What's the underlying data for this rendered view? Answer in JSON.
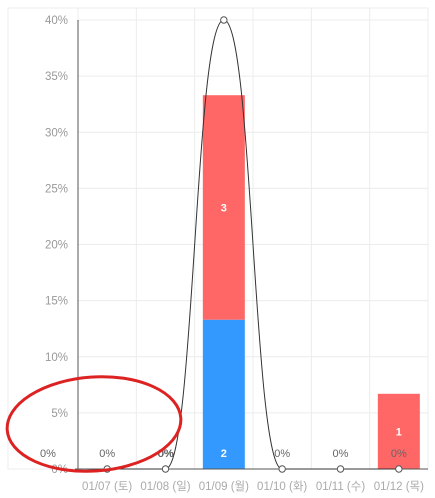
{
  "chart_data": {
    "type": "bar",
    "stacked": true,
    "categories": [
      "01/07 (토)",
      "01/08 (일)",
      "01/09 (월)",
      "01/10 (화)",
      "01/11 (수)",
      "01/12 (목)"
    ],
    "series": [
      {
        "color": "#3399ff",
        "values": [
          0,
          0,
          13.3,
          0,
          0,
          0
        ],
        "labels": [
          "",
          "",
          "2",
          "",
          "",
          ""
        ]
      },
      {
        "color": "#ff6666",
        "values": [
          0,
          0,
          20.0,
          0,
          0,
          6.7
        ],
        "labels": [
          "",
          "",
          "3",
          "",
          "",
          "1"
        ]
      }
    ],
    "line": {
      "values": [
        0,
        0,
        40,
        0,
        0,
        0
      ],
      "labels": [
        "0%",
        "0%",
        "",
        "0%",
        "0%",
        "0%"
      ],
      "smooth": true,
      "color": "#333333"
    },
    "outer_labels": [
      "0%",
      "0%"
    ],
    "y_ticks": [
      "0%",
      "5%",
      "10%",
      "15%",
      "20%",
      "25%",
      "30%",
      "35%",
      "40%"
    ],
    "ylim": [
      0,
      40
    ],
    "grid": true,
    "annotation": {
      "shape": "ellipse",
      "color": "#dd2222"
    }
  }
}
